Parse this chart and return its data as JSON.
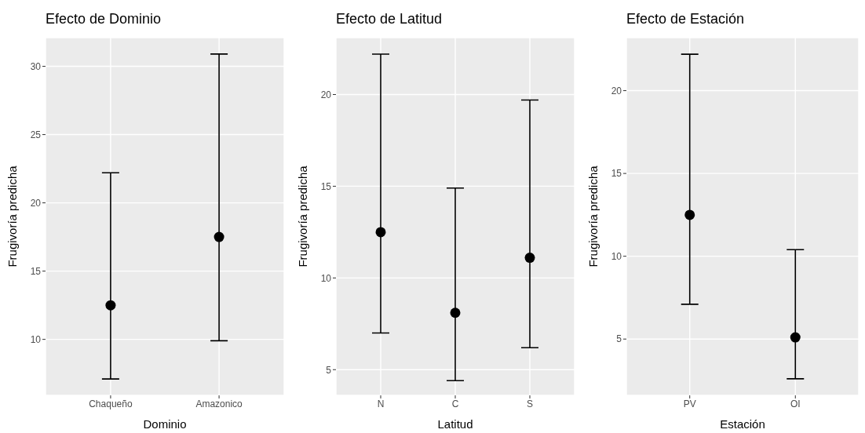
{
  "chart_data": [
    {
      "type": "scatter",
      "title": "Efecto de Dominio",
      "xlabel": "Dominio",
      "ylabel": "Frugivoría predicha",
      "categories": [
        "Chaqueño",
        "Amazonico"
      ],
      "values": [
        12.5,
        17.5
      ],
      "errors": [
        [
          7.1,
          22.2
        ],
        [
          9.9,
          30.9
        ]
      ],
      "color": "#000000",
      "ylim": [
        5.9,
        32.1
      ],
      "yticks": [
        10,
        15,
        20,
        25,
        30
      ],
      "grid": true,
      "marker": "circle"
    },
    {
      "type": "scatter",
      "title": "Efecto de Latitud",
      "xlabel": "Latitud",
      "ylabel": "Frugivoría predicha",
      "categories": [
        "N",
        "C",
        "S"
      ],
      "values": [
        12.5,
        8.1,
        11.1
      ],
      "errors": [
        [
          7.0,
          22.2
        ],
        [
          4.4,
          14.9
        ],
        [
          6.2,
          19.7
        ]
      ],
      "color": "#000000",
      "ylim": [
        3.6,
        23.1
      ],
      "yticks": [
        5,
        10,
        15,
        20
      ],
      "grid": true,
      "marker": "circle"
    },
    {
      "type": "scatter",
      "title": "Efecto de Estación",
      "xlabel": "Estación",
      "ylabel": "Frugivoría predicha",
      "categories": [
        "PV",
        "OI"
      ],
      "values": [
        12.5,
        5.1
      ],
      "errors": [
        [
          7.1,
          22.2
        ],
        [
          2.6,
          10.4
        ]
      ],
      "color": "#000000",
      "ylim": [
        1.6,
        23.2
      ],
      "yticks": [
        5,
        10,
        15,
        20
      ],
      "grid": true,
      "marker": "circle"
    }
  ]
}
